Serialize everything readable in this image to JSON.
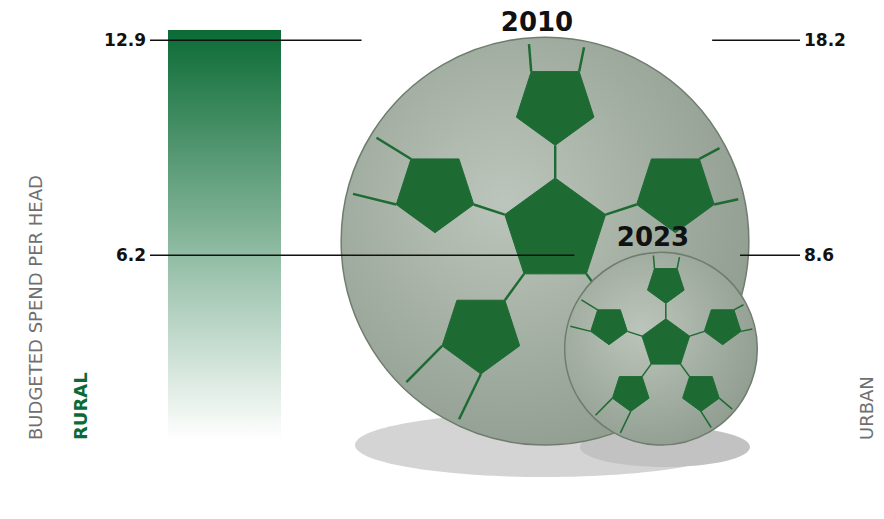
{
  "chart_data": {
    "type": "bubble",
    "y_label": "BUDGETED SPEND PER HEAD",
    "categories": [
      "2010",
      "2023"
    ],
    "series": [
      {
        "name": "RURAL",
        "color": "#0b6b35",
        "values": [
          12.9,
          6.2
        ]
      },
      {
        "name": "URBAN",
        "color": "#6f6f6f",
        "values": [
          18.2,
          8.6
        ]
      }
    ]
  }
}
